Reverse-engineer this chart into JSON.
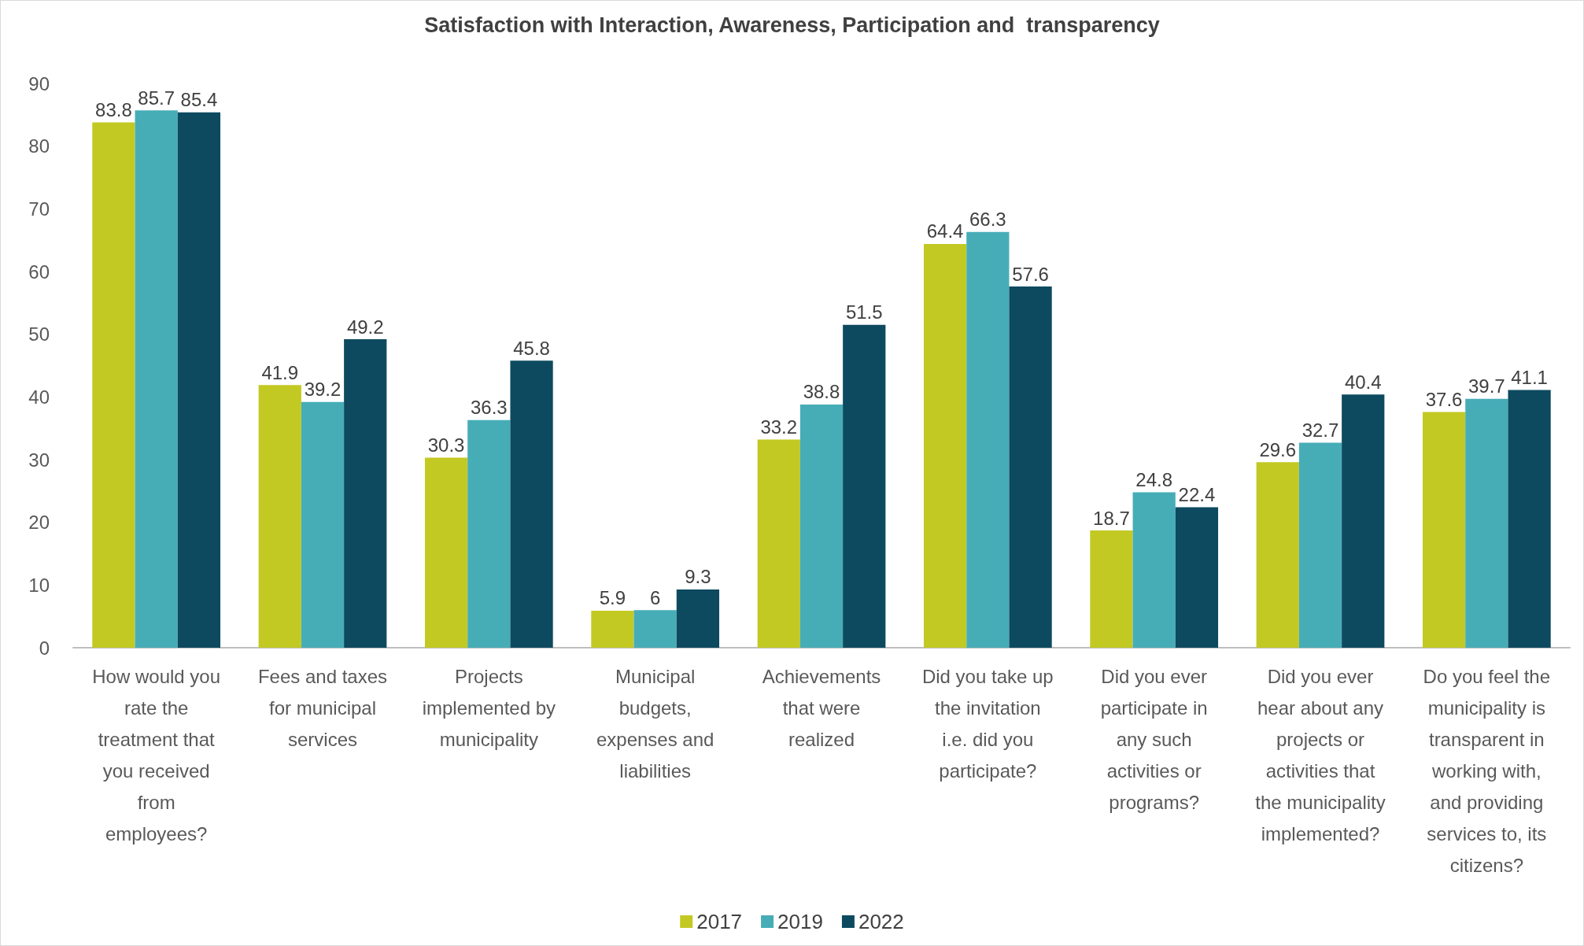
{
  "chart_data": {
    "type": "bar",
    "title": "Satisfaction with Interaction, Awareness, Participation and  transparency",
    "categories": [
      "How would you rate the treatment that you received from employees?",
      "Fees and taxes for municipal services",
      "Projects implemented by municipality",
      "Municipal budgets, expenses and liabilities",
      "Achievements that were realized",
      "Did you take up the invitation i.e. did you participate?",
      "Did you ever participate in any such activities or programs?",
      "Did you ever hear about any projects or activities that the municipality implemented?",
      "Do you feel the municipality is transparent in working with, and providing services to, its citizens?"
    ],
    "series": [
      {
        "name": "2017",
        "color": "#c2c923",
        "values": [
          83.8,
          41.9,
          30.3,
          5.9,
          33.2,
          64.4,
          18.7,
          29.6,
          37.6
        ]
      },
      {
        "name": "2019",
        "color": "#46adb7",
        "values": [
          85.7,
          39.2,
          36.3,
          6,
          38.8,
          66.3,
          24.8,
          32.7,
          39.7
        ]
      },
      {
        "name": "2022",
        "color": "#0d4a5f",
        "values": [
          85.4,
          49.2,
          45.8,
          9.3,
          51.5,
          57.6,
          22.4,
          40.4,
          41.1
        ]
      }
    ],
    "ylim": [
      0,
      90
    ],
    "yticks": [
      0,
      10,
      20,
      30,
      40,
      50,
      60,
      70,
      80,
      90
    ],
    "data_labels": true,
    "grid": false,
    "legend": "bottom"
  }
}
